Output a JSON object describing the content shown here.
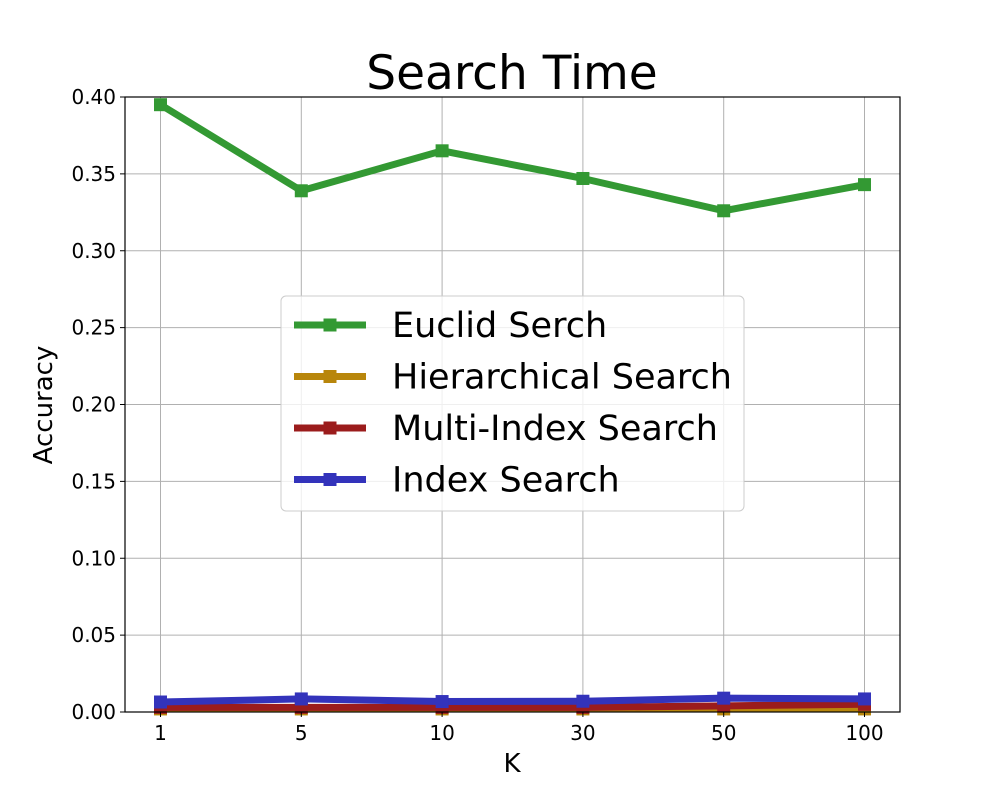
{
  "chart_data": {
    "type": "line",
    "title": "Search Time",
    "xlabel": "K",
    "ylabel": "Accuracy",
    "categories": [
      "1",
      "5",
      "10",
      "30",
      "50",
      "100"
    ],
    "yticks": [
      "0.00",
      "0.05",
      "0.10",
      "0.15",
      "0.20",
      "0.25",
      "0.30",
      "0.35",
      "0.40"
    ],
    "ylim": [
      0,
      0.4
    ],
    "grid": true,
    "legend_position": "center",
    "series": [
      {
        "name": "Euclid Serch",
        "color": "#339933",
        "values": [
          0.395,
          0.339,
          0.365,
          0.347,
          0.326,
          0.343
        ]
      },
      {
        "name": "Hierarchical Search",
        "color": "#b8860b",
        "values": [
          0.002,
          0.002,
          0.002,
          0.002,
          0.002,
          0.002
        ]
      },
      {
        "name": "Multi-Index Search",
        "color": "#9b1c1c",
        "values": [
          0.003,
          0.003,
          0.003,
          0.003,
          0.004,
          0.005
        ]
      },
      {
        "name": "Index Search",
        "color": "#3333bb",
        "values": [
          0.0065,
          0.0085,
          0.0068,
          0.007,
          0.009,
          0.0085
        ]
      }
    ]
  }
}
